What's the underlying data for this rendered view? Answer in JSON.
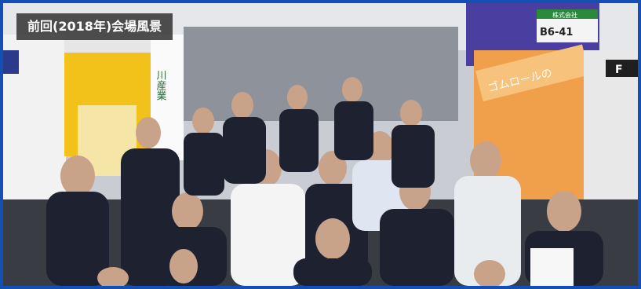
{
  "caption": "前回(2018年)会場風景",
  "booth_signs": {
    "left_vertical": "川産業",
    "right_top_line1": "株式会社",
    "right_top_line2": "B6-41",
    "right_banner": "ゴムロールの",
    "far_right": "F"
  },
  "colors": {
    "frame": "#1450b4",
    "caption_bg": "#373737",
    "booth_yellow": "#f2c21a",
    "booth_orange": "#f28c28",
    "booth_purple": "#4a3fa0"
  }
}
